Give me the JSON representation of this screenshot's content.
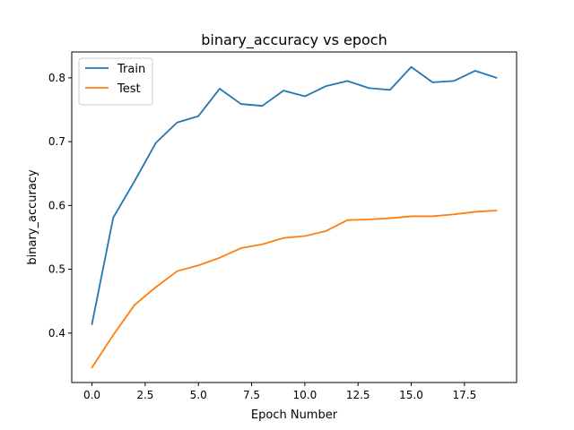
{
  "chart_data": {
    "type": "line",
    "title": "binary_accuracy vs epoch",
    "xlabel": "Epoch Number",
    "ylabel": "binary_accuracy",
    "x": [
      0,
      1,
      2,
      3,
      4,
      5,
      6,
      7,
      8,
      9,
      10,
      11,
      12,
      13,
      14,
      15,
      16,
      17,
      18,
      19
    ],
    "series": [
      {
        "name": "Train",
        "color": "#1f77b4",
        "values": [
          0.414,
          0.581,
          0.638,
          0.698,
          0.73,
          0.74,
          0.783,
          0.759,
          0.756,
          0.78,
          0.771,
          0.787,
          0.795,
          0.784,
          0.781,
          0.817,
          0.793,
          0.795,
          0.811,
          0.8
        ]
      },
      {
        "name": "Test",
        "color": "#ff7f0e",
        "values": [
          0.346,
          0.397,
          0.444,
          0.472,
          0.497,
          0.506,
          0.518,
          0.533,
          0.539,
          0.549,
          0.552,
          0.56,
          0.577,
          0.578,
          0.58,
          0.583,
          0.583,
          0.586,
          0.59,
          0.592
        ]
      }
    ],
    "xlim": [
      -0.95,
      19.95
    ],
    "ylim": [
      0.3225,
      0.8405
    ],
    "xticks": [
      0.0,
      2.5,
      5.0,
      7.5,
      10.0,
      12.5,
      15.0,
      17.5
    ],
    "xtick_labels": [
      "0.0",
      "2.5",
      "5.0",
      "7.5",
      "10.0",
      "12.5",
      "15.0",
      "17.5"
    ],
    "yticks": [
      0.4,
      0.5,
      0.6,
      0.7,
      0.8
    ],
    "ytick_labels": [
      "0.4",
      "0.5",
      "0.6",
      "0.7",
      "0.8"
    ],
    "grid": false,
    "legend_position": "top-left"
  }
}
